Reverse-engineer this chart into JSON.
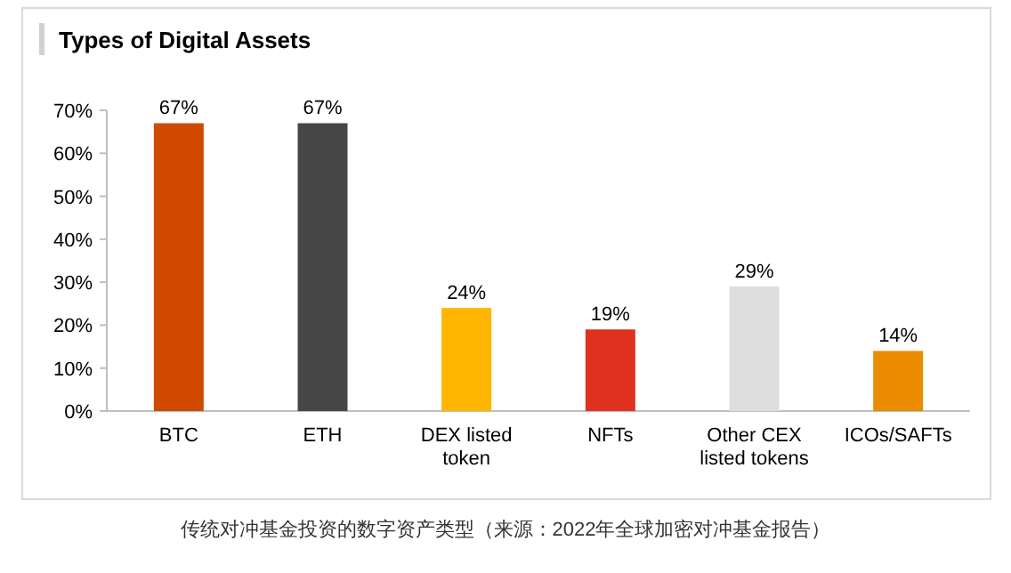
{
  "chart_data": {
    "type": "bar",
    "title": "Types of Digital Assets",
    "categories": [
      "BTC",
      "ETH",
      "DEX listed token",
      "NFTs",
      "Other CEX listed tokens",
      "ICOs/SAFTs"
    ],
    "values": [
      67,
      67,
      24,
      19,
      29,
      14
    ],
    "colors": [
      "#d04a02",
      "#464646",
      "#ffb600",
      "#e0301e",
      "#dedede",
      "#eb8c00"
    ],
    "value_labels": [
      "67%",
      "67%",
      "24%",
      "19%",
      "29%",
      "14%"
    ],
    "ylim": [
      0,
      70
    ],
    "yticks": [
      {
        "value": 0,
        "label": "0%"
      },
      {
        "value": 10,
        "label": "10%"
      },
      {
        "value": 20,
        "label": "20%"
      },
      {
        "value": 30,
        "label": "30%"
      },
      {
        "value": 40,
        "label": "40%"
      },
      {
        "value": 50,
        "label": "50%"
      },
      {
        "value": 60,
        "label": "60%"
      },
      {
        "value": 70,
        "label": "70%"
      }
    ],
    "annotations": [
      "传统对冲基金投资的数字资产类型（来源：2022年全球加密对冲基金报告）"
    ]
  }
}
